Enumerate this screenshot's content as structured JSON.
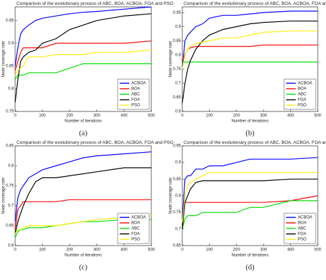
{
  "chart_data": [
    {
      "type": "line",
      "title": "Comparison of the evolutionary process of ABC, BOA, ACBOA, FOA and PSO",
      "caption": "(a)",
      "x_label": "Number of iterations",
      "y_label": "Node coverage rate",
      "x": [
        0,
        10,
        20,
        30,
        50,
        75,
        100,
        150,
        200,
        250,
        300,
        400,
        500
      ],
      "xlim": [
        0,
        500
      ],
      "xticks": [
        0,
        100,
        200,
        300,
        400,
        500
      ],
      "ylim": [
        0.75,
        0.98
      ],
      "yticks": [
        0.75,
        0.8,
        0.85,
        0.9,
        0.95
      ],
      "legend": "lower right",
      "series": [
        {
          "name": "ACBOA",
          "color": "#0000ff",
          "values": [
            0.85,
            0.89,
            0.92,
            0.93,
            0.94,
            0.95,
            0.955,
            0.96,
            0.965,
            0.968,
            0.97,
            0.975,
            0.98
          ]
        },
        {
          "name": "BOA",
          "color": "#ff0000",
          "values": [
            0.84,
            0.86,
            0.88,
            0.89,
            0.89,
            0.89,
            0.89,
            0.9,
            0.9,
            0.9,
            0.9,
            0.9,
            0.905
          ]
        },
        {
          "name": "ABC",
          "color": "#00dd00",
          "values": [
            0.82,
            0.83,
            0.83,
            0.83,
            0.835,
            0.835,
            0.835,
            0.835,
            0.845,
            0.855,
            0.855,
            0.855,
            0.855
          ]
        },
        {
          "name": "FOA",
          "color": "#000000",
          "values": [
            0.77,
            0.82,
            0.86,
            0.87,
            0.88,
            0.885,
            0.9,
            0.91,
            0.93,
            0.94,
            0.95,
            0.96,
            0.965
          ]
        },
        {
          "name": "PSO",
          "color": "#ffee00",
          "values": [
            0.83,
            0.84,
            0.845,
            0.85,
            0.87,
            0.87,
            0.87,
            0.875,
            0.875,
            0.875,
            0.88,
            0.88,
            0.885
          ]
        }
      ]
    },
    {
      "type": "line",
      "title": "Comparison of the evolutionary process of ABC, BOA, ACBOA, FOA and PSO",
      "caption": "(b)",
      "x_label": "Number of iterations",
      "y_label": "Node coverage rate",
      "x": [
        0,
        10,
        20,
        30,
        50,
        75,
        100,
        150,
        200,
        250,
        300,
        400,
        500
      ],
      "xlim": [
        0,
        500
      ],
      "xticks": [
        0,
        100,
        200,
        300,
        400,
        500
      ],
      "ylim": [
        0.6,
        0.97
      ],
      "yticks": [
        0.6,
        0.65,
        0.7,
        0.75,
        0.8,
        0.85,
        0.9,
        0.95
      ],
      "legend": "lower right",
      "series": [
        {
          "name": "ACBOA",
          "color": "#0000ff",
          "values": [
            0.75,
            0.85,
            0.87,
            0.88,
            0.9,
            0.91,
            0.93,
            0.94,
            0.94,
            0.945,
            0.95,
            0.955,
            0.955
          ]
        },
        {
          "name": "BOA",
          "color": "#ff0000",
          "values": [
            0.78,
            0.8,
            0.82,
            0.825,
            0.83,
            0.83,
            0.83,
            0.83,
            0.83,
            0.83,
            0.835,
            0.835,
            0.835
          ]
        },
        {
          "name": "ABC",
          "color": "#00dd00",
          "values": [
            0.77,
            0.775,
            0.775,
            0.775,
            0.775,
            0.775,
            0.775,
            0.775,
            0.775,
            0.775,
            0.775,
            0.775,
            0.775
          ]
        },
        {
          "name": "FOA",
          "color": "#000000",
          "values": [
            0.63,
            0.7,
            0.75,
            0.78,
            0.82,
            0.85,
            0.87,
            0.89,
            0.9,
            0.91,
            0.915,
            0.92,
            0.92
          ]
        },
        {
          "name": "PSO",
          "color": "#ffee00",
          "values": [
            0.75,
            0.8,
            0.82,
            0.83,
            0.84,
            0.845,
            0.85,
            0.86,
            0.86,
            0.87,
            0.88,
            0.885,
            0.885
          ]
        }
      ]
    },
    {
      "type": "line",
      "title": "Comparison of the evolutionary process of ABC, BOA, ACBOA, FOA and PSO",
      "caption": "(c)",
      "x_label": "Number of iterations",
      "y_label": "Node coverage rate",
      "x": [
        0,
        10,
        20,
        30,
        50,
        75,
        100,
        150,
        200,
        250,
        300,
        400,
        500
      ],
      "xlim": [
        0,
        500
      ],
      "xticks": [
        0,
        100,
        200,
        300,
        400,
        500
      ],
      "ylim": [
        0.6,
        0.85
      ],
      "yticks": [
        0.6,
        0.65,
        0.7,
        0.75,
        0.8,
        0.85
      ],
      "legend": "lower right",
      "series": [
        {
          "name": "ACBOA",
          "color": "#0000ff",
          "values": [
            0.66,
            0.72,
            0.74,
            0.75,
            0.77,
            0.78,
            0.79,
            0.8,
            0.81,
            0.82,
            0.825,
            0.83,
            0.835
          ]
        },
        {
          "name": "BOA",
          "color": "#ff0000",
          "values": [
            0.64,
            0.69,
            0.7,
            0.71,
            0.71,
            0.71,
            0.71,
            0.71,
            0.715,
            0.715,
            0.715,
            0.715,
            0.715
          ]
        },
        {
          "name": "ABC",
          "color": "#00dd00",
          "values": [
            0.62,
            0.635,
            0.64,
            0.64,
            0.645,
            0.645,
            0.645,
            0.65,
            0.655,
            0.66,
            0.66,
            0.665,
            0.665
          ]
        },
        {
          "name": "FOA",
          "color": "#000000",
          "values": [
            0.63,
            0.66,
            0.68,
            0.7,
            0.73,
            0.76,
            0.77,
            0.77,
            0.775,
            0.78,
            0.785,
            0.795,
            0.795
          ]
        },
        {
          "name": "PSO",
          "color": "#ffee00",
          "values": [
            0.63,
            0.64,
            0.64,
            0.645,
            0.65,
            0.65,
            0.65,
            0.65,
            0.655,
            0.66,
            0.665,
            0.67,
            0.675
          ]
        }
      ]
    },
    {
      "type": "line",
      "title": "Comparison of the evolutionary process of ABC, BOA, ACBOA, FOA and PSO",
      "caption": "(d)",
      "x_label": "Number of iterations",
      "y_label": "Node coverage rate",
      "x": [
        0,
        10,
        20,
        30,
        50,
        75,
        100,
        150,
        200,
        250,
        300,
        400,
        500
      ],
      "xlim": [
        0,
        500
      ],
      "xticks": [
        0,
        100,
        200,
        300,
        400,
        500
      ],
      "ylim": [
        0.65,
        0.95
      ],
      "yticks": [
        0.65,
        0.7,
        0.75,
        0.8,
        0.85,
        0.9,
        0.95
      ],
      "legend": "lower right",
      "series": [
        {
          "name": "ACBOA",
          "color": "#0000ff",
          "values": [
            0.73,
            0.85,
            0.86,
            0.86,
            0.88,
            0.88,
            0.89,
            0.89,
            0.9,
            0.91,
            0.91,
            0.91,
            0.915
          ]
        },
        {
          "name": "BOA",
          "color": "#ff0000",
          "values": [
            0.71,
            0.78,
            0.78,
            0.78,
            0.78,
            0.78,
            0.78,
            0.78,
            0.78,
            0.78,
            0.78,
            0.785,
            0.8
          ]
        },
        {
          "name": "ABC",
          "color": "#00dd00",
          "values": [
            0.7,
            0.73,
            0.74,
            0.74,
            0.74,
            0.75,
            0.75,
            0.75,
            0.75,
            0.765,
            0.765,
            0.785,
            0.785
          ]
        },
        {
          "name": "FOA",
          "color": "#000000",
          "values": [
            0.7,
            0.78,
            0.8,
            0.82,
            0.84,
            0.845,
            0.845,
            0.845,
            0.845,
            0.845,
            0.845,
            0.85,
            0.85
          ]
        },
        {
          "name": "PSO",
          "color": "#ffee00",
          "values": [
            0.72,
            0.8,
            0.83,
            0.84,
            0.85,
            0.86,
            0.87,
            0.87,
            0.87,
            0.87,
            0.87,
            0.87,
            0.87
          ]
        }
      ]
    }
  ]
}
